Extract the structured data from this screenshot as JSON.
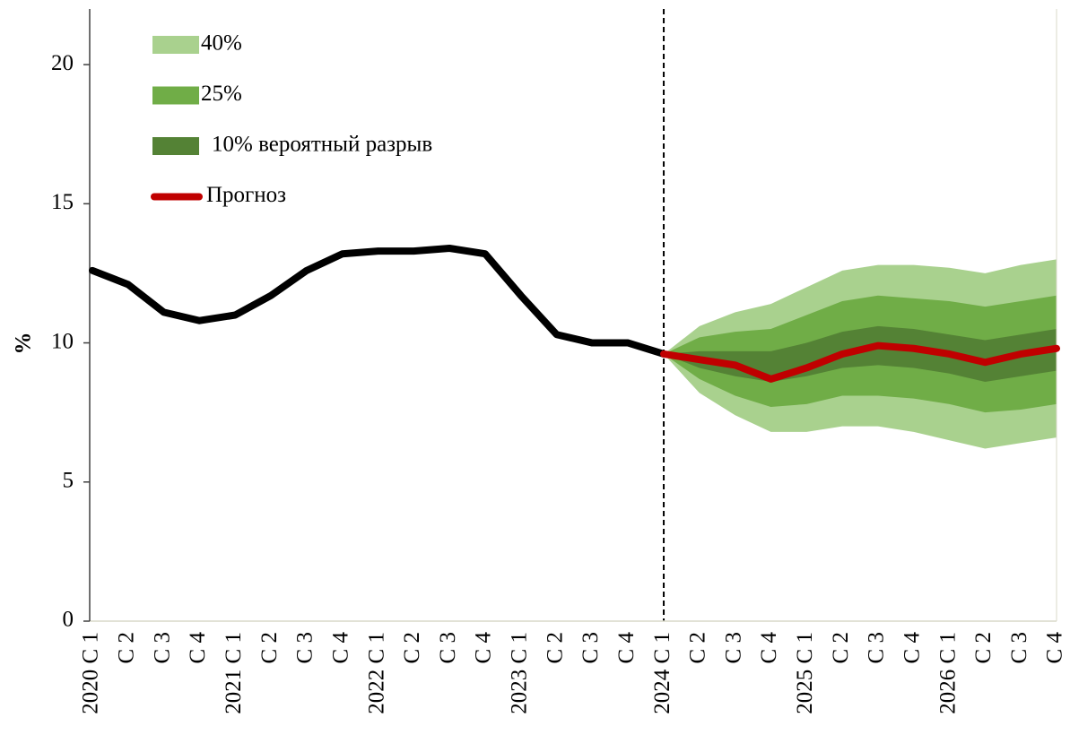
{
  "chart_data": {
    "type": "fan",
    "y_label": "%",
    "categories": [
      "2020 C 1",
      "C 2",
      "C 3",
      "C 4",
      "2021 C 1",
      "C 2",
      "C 3",
      "C 4",
      "2022 C 1",
      "C 2",
      "C 3",
      "C 4",
      "2023 C 1",
      "C 2",
      "C 3",
      "C 4",
      "2024 C 1",
      "C 2",
      "C 3",
      "C 4",
      "2025 C 1",
      "C 2",
      "C 3",
      "C 4",
      "2026 C 1",
      "C 2",
      "C 3",
      "C 4"
    ],
    "ylim": [
      0,
      22
    ],
    "yticks": [
      0,
      5,
      10,
      15,
      20
    ],
    "bands": [
      {
        "name": "40%",
        "color": "#a9d18e",
        "low": [
          null,
          null,
          null,
          null,
          null,
          null,
          null,
          null,
          null,
          null,
          null,
          null,
          null,
          null,
          null,
          null,
          9.6,
          8.2,
          7.4,
          6.8,
          6.8,
          7.0,
          7.0,
          6.8,
          6.5,
          6.2,
          6.4,
          6.6
        ],
        "high": [
          null,
          null,
          null,
          null,
          null,
          null,
          null,
          null,
          null,
          null,
          null,
          null,
          null,
          null,
          null,
          null,
          9.6,
          10.6,
          11.1,
          11.4,
          12.0,
          12.6,
          12.8,
          12.8,
          12.7,
          12.5,
          12.8,
          13.0
        ]
      },
      {
        "name": "25%",
        "color": "#70ad47",
        "low": [
          null,
          null,
          null,
          null,
          null,
          null,
          null,
          null,
          null,
          null,
          null,
          null,
          null,
          null,
          null,
          null,
          9.6,
          8.7,
          8.1,
          7.7,
          7.8,
          8.1,
          8.1,
          8.0,
          7.8,
          7.5,
          7.6,
          7.8
        ],
        "high": [
          null,
          null,
          null,
          null,
          null,
          null,
          null,
          null,
          null,
          null,
          null,
          null,
          null,
          null,
          null,
          null,
          9.6,
          10.2,
          10.4,
          10.5,
          11.0,
          11.5,
          11.7,
          11.6,
          11.5,
          11.3,
          11.5,
          11.7
        ]
      },
      {
        "name": "10% вероятный разрыв",
        "color": "#548235",
        "low": [
          null,
          null,
          null,
          null,
          null,
          null,
          null,
          null,
          null,
          null,
          null,
          null,
          null,
          null,
          null,
          null,
          9.6,
          9.1,
          8.8,
          8.6,
          8.8,
          9.1,
          9.2,
          9.1,
          8.9,
          8.6,
          8.8,
          9.0
        ],
        "high": [
          null,
          null,
          null,
          null,
          null,
          null,
          null,
          null,
          null,
          null,
          null,
          null,
          null,
          null,
          null,
          null,
          9.6,
          9.7,
          9.7,
          9.7,
          10.0,
          10.4,
          10.6,
          10.5,
          10.3,
          10.1,
          10.3,
          10.5
        ]
      }
    ],
    "series": [
      {
        "color": "#000000",
        "values": [
          12.6,
          12.1,
          11.1,
          10.8,
          11.0,
          11.7,
          12.6,
          13.2,
          13.3,
          13.3,
          13.4,
          13.2,
          11.7,
          10.3,
          10.0,
          10.0,
          9.6,
          null,
          null,
          null,
          null,
          null,
          null,
          null,
          null,
          null,
          null,
          null
        ]
      },
      {
        "name": "Прогноз",
        "color": "#c00000",
        "values": [
          null,
          null,
          null,
          null,
          null,
          null,
          null,
          null,
          null,
          null,
          null,
          null,
          null,
          null,
          null,
          null,
          9.6,
          9.4,
          9.2,
          8.7,
          9.1,
          9.6,
          9.9,
          9.8,
          9.6,
          9.3,
          9.6,
          9.8
        ]
      }
    ]
  }
}
